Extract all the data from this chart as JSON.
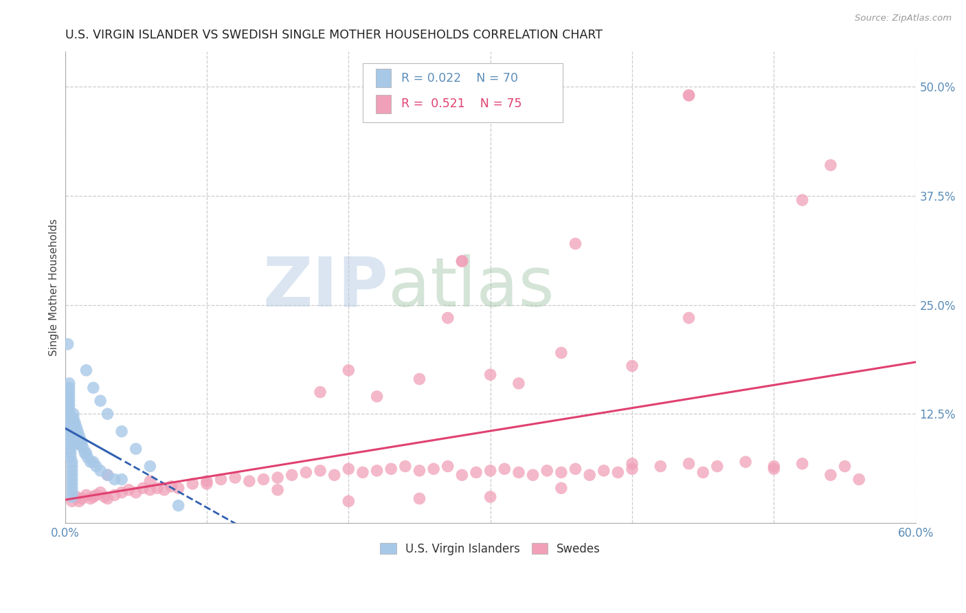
{
  "title": "U.S. VIRGIN ISLANDER VS SWEDISH SINGLE MOTHER HOUSEHOLDS CORRELATION CHART",
  "source": "Source: ZipAtlas.com",
  "ylabel": "Single Mother Households",
  "xlim": [
    0.0,
    0.6
  ],
  "ylim": [
    0.0,
    0.54
  ],
  "blue_color": "#A8C8E8",
  "pink_color": "#F0A0B8",
  "blue_line_color": "#3060B0",
  "pink_line_color": "#E04070",
  "watermark_zip": "ZIP",
  "watermark_atlas": "atlas",
  "vi_x": [
    0.002,
    0.002,
    0.002,
    0.003,
    0.003,
    0.003,
    0.003,
    0.003,
    0.003,
    0.003,
    0.003,
    0.004,
    0.004,
    0.004,
    0.004,
    0.004,
    0.004,
    0.004,
    0.004,
    0.004,
    0.004,
    0.005,
    0.005,
    0.005,
    0.005,
    0.005,
    0.005,
    0.005,
    0.005,
    0.005,
    0.006,
    0.006,
    0.006,
    0.006,
    0.006,
    0.006,
    0.007,
    0.007,
    0.007,
    0.007,
    0.008,
    0.008,
    0.008,
    0.009,
    0.009,
    0.01,
    0.01,
    0.01,
    0.011,
    0.011,
    0.012,
    0.013,
    0.014,
    0.015,
    0.016,
    0.018,
    0.02,
    0.022,
    0.025,
    0.03,
    0.035,
    0.04,
    0.015,
    0.02,
    0.025,
    0.03,
    0.04,
    0.05,
    0.06,
    0.08
  ],
  "vi_y": [
    0.205,
    0.145,
    0.135,
    0.16,
    0.155,
    0.15,
    0.145,
    0.14,
    0.135,
    0.13,
    0.125,
    0.12,
    0.115,
    0.11,
    0.105,
    0.1,
    0.095,
    0.09,
    0.085,
    0.08,
    0.075,
    0.07,
    0.065,
    0.06,
    0.055,
    0.05,
    0.045,
    0.04,
    0.035,
    0.03,
    0.125,
    0.12,
    0.115,
    0.11,
    0.105,
    0.1,
    0.115,
    0.11,
    0.105,
    0.095,
    0.11,
    0.105,
    0.1,
    0.105,
    0.095,
    0.1,
    0.095,
    0.09,
    0.095,
    0.09,
    0.09,
    0.085,
    0.08,
    0.08,
    0.075,
    0.07,
    0.07,
    0.065,
    0.06,
    0.055,
    0.05,
    0.05,
    0.175,
    0.155,
    0.14,
    0.125,
    0.105,
    0.085,
    0.065,
    0.02
  ],
  "sw_x": [
    0.005,
    0.008,
    0.01,
    0.012,
    0.015,
    0.018,
    0.02,
    0.022,
    0.025,
    0.028,
    0.03,
    0.035,
    0.04,
    0.045,
    0.05,
    0.055,
    0.06,
    0.065,
    0.07,
    0.075,
    0.08,
    0.09,
    0.1,
    0.11,
    0.12,
    0.13,
    0.14,
    0.15,
    0.16,
    0.17,
    0.18,
    0.19,
    0.2,
    0.21,
    0.22,
    0.23,
    0.24,
    0.25,
    0.26,
    0.27,
    0.28,
    0.29,
    0.3,
    0.31,
    0.32,
    0.33,
    0.34,
    0.35,
    0.36,
    0.37,
    0.38,
    0.39,
    0.4,
    0.42,
    0.44,
    0.46,
    0.48,
    0.5,
    0.52,
    0.54,
    0.56,
    0.03,
    0.06,
    0.1,
    0.15,
    0.2,
    0.25,
    0.3,
    0.35,
    0.4,
    0.45,
    0.5,
    0.55,
    0.28,
    0.44
  ],
  "sw_y": [
    0.025,
    0.03,
    0.025,
    0.028,
    0.032,
    0.028,
    0.03,
    0.032,
    0.035,
    0.03,
    0.028,
    0.032,
    0.035,
    0.038,
    0.035,
    0.04,
    0.038,
    0.04,
    0.038,
    0.042,
    0.04,
    0.045,
    0.048,
    0.05,
    0.052,
    0.048,
    0.05,
    0.052,
    0.055,
    0.058,
    0.06,
    0.055,
    0.062,
    0.058,
    0.06,
    0.062,
    0.065,
    0.06,
    0.062,
    0.065,
    0.055,
    0.058,
    0.06,
    0.062,
    0.058,
    0.055,
    0.06,
    0.058,
    0.062,
    0.055,
    0.06,
    0.058,
    0.062,
    0.065,
    0.068,
    0.065,
    0.07,
    0.065,
    0.068,
    0.055,
    0.05,
    0.055,
    0.048,
    0.045,
    0.038,
    0.025,
    0.028,
    0.03,
    0.04,
    0.068,
    0.058,
    0.062,
    0.065,
    0.3,
    0.49
  ]
}
